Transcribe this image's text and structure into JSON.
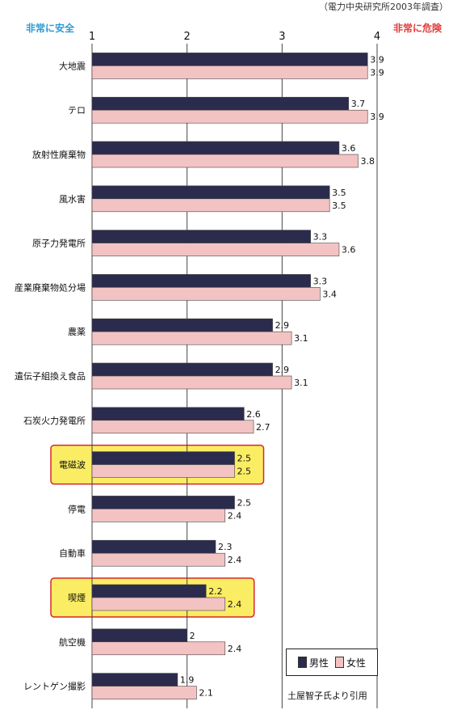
{
  "header": {
    "source_note": "（電力中央研究所2003年調査）",
    "left_label": "非常に安全",
    "right_label": "非常に危険"
  },
  "legend": {
    "male": "男性",
    "female": "女性"
  },
  "citation": "土屋智子氏より引用",
  "colors": {
    "male": "#2b2b4d",
    "female": "#f3c3c3",
    "highlight_fill": "#fbed63",
    "highlight_border": "#d8262a",
    "grid": "#444444"
  },
  "chart_data": {
    "type": "bar",
    "orientation": "horizontal",
    "xlim": [
      1,
      4
    ],
    "xticks": [
      "1",
      "2",
      "3",
      "4"
    ],
    "grid": true,
    "legend_position": "bottom-right",
    "categories": [
      "大地震",
      "テロ",
      "放射性廃棄物",
      "風水害",
      "原子力発電所",
      "産業廃棄物処分場",
      "農薬",
      "遺伝子組換え食品",
      "石炭火力発電所",
      "電磁波",
      "停電",
      "自動車",
      "喫煙",
      "航空機",
      "レントゲン撮影"
    ],
    "highlighted": [
      "電磁波",
      "喫煙"
    ],
    "series": [
      {
        "name": "男性",
        "values": [
          3.9,
          3.7,
          3.6,
          3.5,
          3.3,
          3.3,
          2.9,
          2.9,
          2.6,
          2.5,
          2.5,
          2.3,
          2.2,
          2,
          1.9
        ]
      },
      {
        "name": "女性",
        "values": [
          3.9,
          3.9,
          3.8,
          3.5,
          3.6,
          3.4,
          3.1,
          3.1,
          2.7,
          2.5,
          2.4,
          2.4,
          2.4,
          2.4,
          2.1
        ]
      }
    ]
  }
}
